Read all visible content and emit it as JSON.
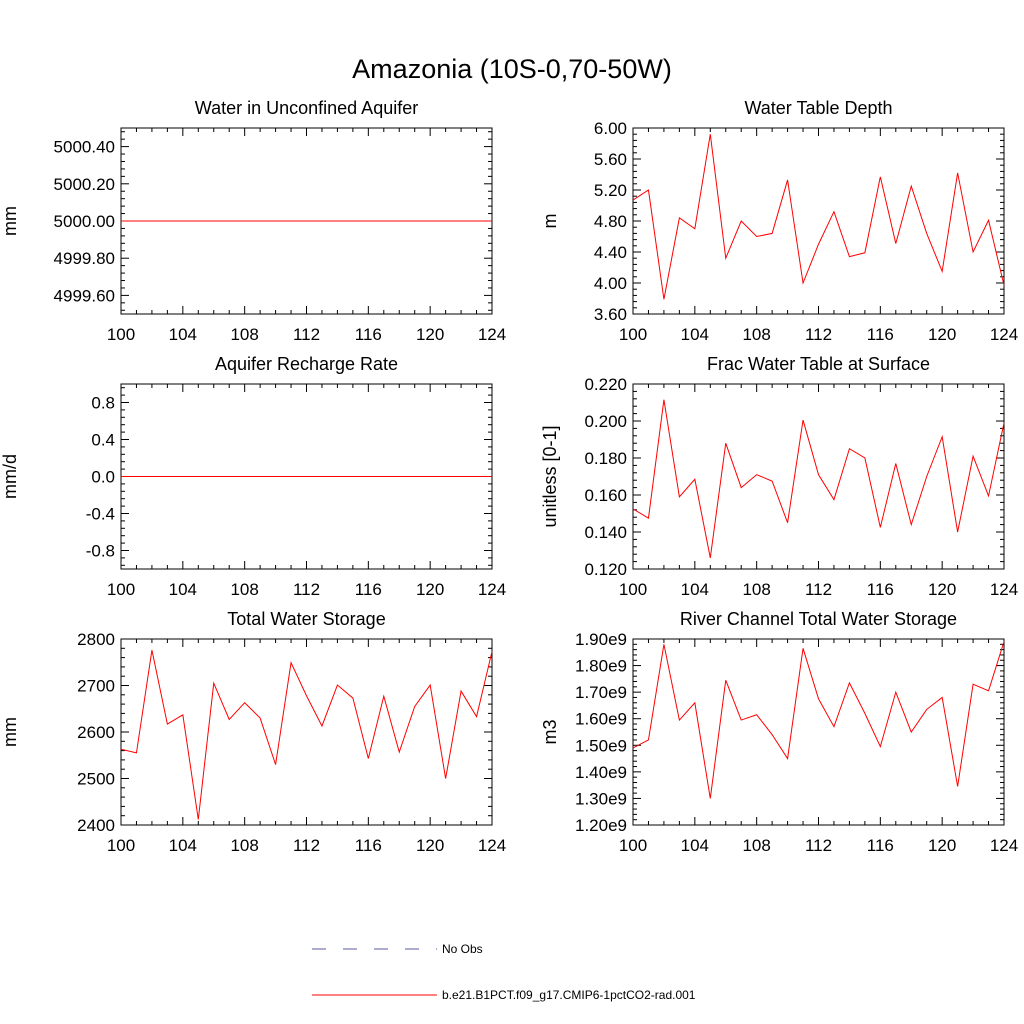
{
  "title": "Amazonia (10S-0,70-50W)",
  "colors": {
    "series": "#ff0000",
    "obs": "#5a5aa0",
    "axis": "#000000"
  },
  "legend": [
    {
      "label": "No Obs",
      "style": "dashed",
      "color": "#5a5aa0"
    },
    {
      "label": "b.e21.B1PCT.f09_g17.CMIP6-1pctCO2-rad.001",
      "style": "solid",
      "color": "#ff0000"
    }
  ],
  "chart_data": [
    {
      "type": "line",
      "title": "Water in Unconfined Aquifer",
      "ylabel": "mm",
      "xlim": [
        100,
        124
      ],
      "ylim": [
        4999.5,
        5000.5
      ],
      "xticks": [
        100,
        104,
        108,
        112,
        116,
        120,
        124
      ],
      "yticks": [
        4999.6,
        4999.8,
        5000.0,
        5000.2,
        5000.4
      ],
      "ytick_labels": [
        "4999.60",
        "4999.80",
        "5000.00",
        "5000.20",
        "5000.40"
      ],
      "x": [
        100,
        124
      ],
      "values": [
        5000.0,
        5000.0
      ]
    },
    {
      "type": "line",
      "title": "Water Table Depth",
      "ylabel": "m",
      "xlim": [
        100,
        124
      ],
      "ylim": [
        3.6,
        6.0
      ],
      "xticks": [
        100,
        104,
        108,
        112,
        116,
        120,
        124
      ],
      "yticks": [
        3.6,
        4.0,
        4.4,
        4.8,
        5.2,
        5.6,
        6.0
      ],
      "ytick_labels": [
        "3.60",
        "4.00",
        "4.40",
        "4.80",
        "5.20",
        "5.60",
        "6.00"
      ],
      "x": [
        100,
        101,
        102,
        103,
        104,
        105,
        106,
        107,
        108,
        109,
        110,
        111,
        112,
        113,
        114,
        115,
        116,
        117,
        118,
        119,
        120,
        121,
        122,
        123,
        124
      ],
      "values": [
        5.07,
        5.2,
        3.79,
        4.84,
        4.7,
        5.92,
        4.32,
        4.8,
        4.6,
        4.64,
        5.33,
        4.0,
        4.5,
        4.92,
        4.34,
        4.39,
        5.37,
        4.51,
        5.25,
        4.64,
        4.15,
        5.42,
        4.4,
        4.81,
        3.97
      ]
    },
    {
      "type": "line",
      "title": "Aquifer Recharge Rate",
      "ylabel": "mm/d",
      "xlim": [
        100,
        124
      ],
      "ylim": [
        -1.0,
        1.0
      ],
      "xticks": [
        100,
        104,
        108,
        112,
        116,
        120,
        124
      ],
      "yticks": [
        -0.8,
        -0.4,
        0.0,
        0.4,
        0.8
      ],
      "ytick_labels": [
        "-0.8",
        "-0.4",
        "0.0",
        "0.4",
        "0.8"
      ],
      "x": [
        100,
        124
      ],
      "values": [
        0.0,
        0.0
      ]
    },
    {
      "type": "line",
      "title": "Frac Water Table at Surface",
      "ylabel": "unitless [0-1]",
      "xlim": [
        100,
        124
      ],
      "ylim": [
        0.12,
        0.22
      ],
      "xticks": [
        100,
        104,
        108,
        112,
        116,
        120,
        124
      ],
      "yticks": [
        0.12,
        0.14,
        0.16,
        0.18,
        0.2,
        0.22
      ],
      "ytick_labels": [
        "0.120",
        "0.140",
        "0.160",
        "0.180",
        "0.200",
        "0.220"
      ],
      "x": [
        100,
        101,
        102,
        103,
        104,
        105,
        106,
        107,
        108,
        109,
        110,
        111,
        112,
        113,
        114,
        115,
        116,
        117,
        118,
        119,
        120,
        121,
        122,
        123,
        124
      ],
      "values": [
        0.1525,
        0.1475,
        0.2115,
        0.159,
        0.1685,
        0.126,
        0.188,
        0.164,
        0.171,
        0.1675,
        0.145,
        0.2005,
        0.171,
        0.1575,
        0.185,
        0.18,
        0.1425,
        0.177,
        0.144,
        0.17,
        0.1915,
        0.14,
        0.181,
        0.1595,
        0.199
      ]
    },
    {
      "type": "line",
      "title": "Total Water Storage",
      "ylabel": "mm",
      "xlim": [
        100,
        124
      ],
      "ylim": [
        2400,
        2800
      ],
      "xticks": [
        100,
        104,
        108,
        112,
        116,
        120,
        124
      ],
      "yticks": [
        2400,
        2500,
        2600,
        2700,
        2800
      ],
      "ytick_labels": [
        "2400",
        "2500",
        "2600",
        "2700",
        "2800"
      ],
      "x": [
        100,
        101,
        102,
        103,
        104,
        105,
        106,
        107,
        108,
        109,
        110,
        111,
        112,
        113,
        114,
        115,
        116,
        117,
        118,
        119,
        120,
        121,
        122,
        123,
        124
      ],
      "values": [
        2563,
        2555,
        2776,
        2617,
        2637,
        2412,
        2705,
        2627,
        2663,
        2630,
        2530,
        2749,
        2678,
        2613,
        2701,
        2673,
        2543,
        2677,
        2557,
        2655,
        2701,
        2500,
        2688,
        2633,
        2773
      ]
    },
    {
      "type": "line",
      "title": "River Channel Total Water Storage",
      "ylabel": "m3",
      "xlim": [
        100,
        124
      ],
      "ylim": [
        1200000000.0,
        1900000000.0
      ],
      "xticks": [
        100,
        104,
        108,
        112,
        116,
        120,
        124
      ],
      "yticks": [
        1200000000.0,
        1300000000.0,
        1400000000.0,
        1500000000.0,
        1600000000.0,
        1700000000.0,
        1800000000.0,
        1900000000.0
      ],
      "ytick_labels": [
        "1.20e9",
        "1.30e9",
        "1.40e9",
        "1.50e9",
        "1.60e9",
        "1.70e9",
        "1.80e9",
        "1.90e9"
      ],
      "x": [
        100,
        101,
        102,
        103,
        104,
        105,
        106,
        107,
        108,
        109,
        110,
        111,
        112,
        113,
        114,
        115,
        116,
        117,
        118,
        119,
        120,
        121,
        122,
        123,
        124
      ],
      "values": [
        1490000000.0,
        1520000000.0,
        1880000000.0,
        1595000000.0,
        1660000000.0,
        1300000000.0,
        1745000000.0,
        1595000000.0,
        1615000000.0,
        1540000000.0,
        1450000000.0,
        1865000000.0,
        1675000000.0,
        1570000000.0,
        1735000000.0,
        1620000000.0,
        1495000000.0,
        1700000000.0,
        1550000000.0,
        1635000000.0,
        1680000000.0,
        1345000000.0,
        1730000000.0,
        1705000000.0,
        1890000000.0
      ]
    }
  ]
}
